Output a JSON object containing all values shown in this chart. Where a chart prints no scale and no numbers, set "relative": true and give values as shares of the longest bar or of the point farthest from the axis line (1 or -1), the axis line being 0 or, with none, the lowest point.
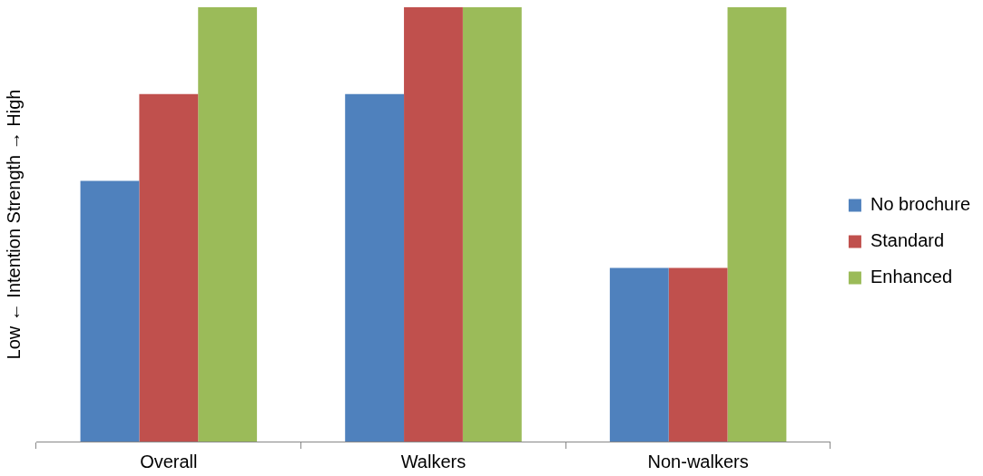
{
  "chart_data": {
    "type": "bar",
    "ylabel": "Low ← Intention Strength → High",
    "relative": true,
    "legend": "right",
    "grid": false,
    "categories": [
      "Overall",
      "Walkers",
      "Non-walkers"
    ],
    "series": [
      {
        "name": "No brochure",
        "color": "#4f81bd",
        "values": [
          0.6,
          0.8,
          0.4
        ]
      },
      {
        "name": "Standard",
        "color": "#c0504d",
        "values": [
          0.8,
          1,
          0.4
        ]
      },
      {
        "name": "Enhanced",
        "color": "#9bbb59",
        "values": [
          1,
          1,
          1
        ]
      }
    ]
  }
}
